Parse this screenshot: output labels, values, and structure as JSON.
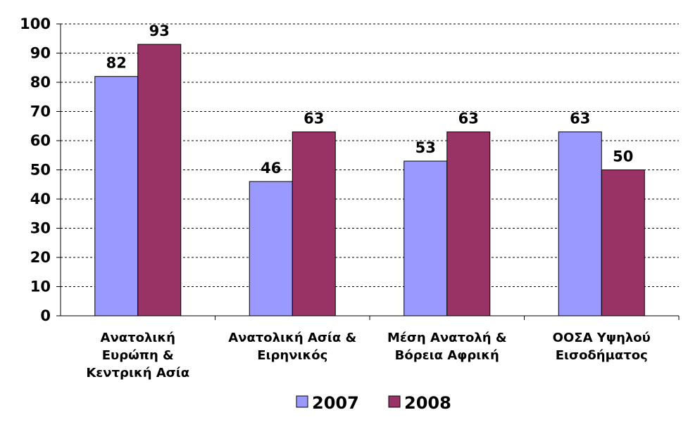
{
  "chart_data": {
    "type": "bar",
    "categories": [
      [
        "Ανατολική",
        "Ευρώπη &",
        "Κεντρική Ασία"
      ],
      [
        "Ανατολική Ασία &",
        "Ειρηνικός"
      ],
      [
        "Μέση Ανατολή &",
        "Βόρεια Αφρική"
      ],
      [
        "ΟΟΣΑ Υψηλού",
        "Εισοδήματος"
      ]
    ],
    "series": [
      {
        "name": "2007",
        "color": "#9999ff",
        "values": [
          82,
          46,
          53,
          63
        ]
      },
      {
        "name": "2008",
        "color": "#993366",
        "values": [
          93,
          63,
          63,
          50
        ]
      }
    ],
    "yticks": [
      "0",
      "10",
      "20",
      "30",
      "40",
      "50",
      "60",
      "70",
      "80",
      "90",
      "100"
    ],
    "ylim": [
      0,
      100
    ],
    "ytick_step": 10,
    "grid": true,
    "grid_style": "dashed",
    "data_labels": true,
    "legend_position": "bottom"
  }
}
